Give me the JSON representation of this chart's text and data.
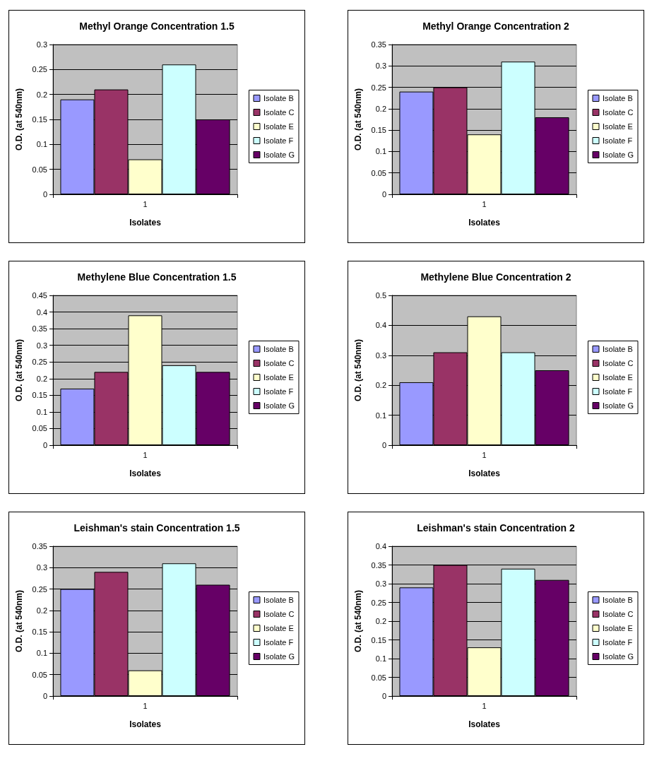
{
  "chart_data": [
    {
      "type": "bar",
      "title": "Methyl Orange Concentration 1.5",
      "xlabel": "Isolates",
      "ylabel": "O.D. (at 540nm)",
      "categories": [
        "1"
      ],
      "ylim": [
        0,
        0.3
      ],
      "yticks": [
        0,
        0.05,
        0.1,
        0.15,
        0.2,
        0.25,
        0.3
      ],
      "grid": "y",
      "legend": "right",
      "series": [
        {
          "name": "Isolate B",
          "color": "#9999ff",
          "values": [
            0.19
          ]
        },
        {
          "name": "Isolate C",
          "color": "#993366",
          "values": [
            0.21
          ]
        },
        {
          "name": "Isolate E",
          "color": "#ffffcc",
          "values": [
            0.07
          ]
        },
        {
          "name": "Isolate F",
          "color": "#ccffff",
          "values": [
            0.26
          ]
        },
        {
          "name": "Isolate G",
          "color": "#660066",
          "values": [
            0.15
          ]
        }
      ]
    },
    {
      "type": "bar",
      "title": "Methyl Orange Concentration 2",
      "xlabel": "Isolates",
      "ylabel": "O.D. (at 540nm)",
      "categories": [
        "1"
      ],
      "ylim": [
        0,
        0.35
      ],
      "yticks": [
        0,
        0.05,
        0.1,
        0.15,
        0.2,
        0.25,
        0.3,
        0.35
      ],
      "grid": "y",
      "legend": "right",
      "series": [
        {
          "name": "Isolate B",
          "color": "#9999ff",
          "values": [
            0.24
          ]
        },
        {
          "name": "Isolate C",
          "color": "#993366",
          "values": [
            0.25
          ]
        },
        {
          "name": "Isolate E",
          "color": "#ffffcc",
          "values": [
            0.14
          ]
        },
        {
          "name": "Isolate F",
          "color": "#ccffff",
          "values": [
            0.31
          ]
        },
        {
          "name": "Isolate G",
          "color": "#660066",
          "values": [
            0.18
          ]
        }
      ]
    },
    {
      "type": "bar",
      "title": "Methylene Blue Concentration 1.5",
      "xlabel": "Isolates",
      "ylabel": "O.D. (at 540nm)",
      "categories": [
        "1"
      ],
      "ylim": [
        0,
        0.45
      ],
      "yticks": [
        0,
        0.05,
        0.1,
        0.15,
        0.2,
        0.25,
        0.3,
        0.35,
        0.4,
        0.45
      ],
      "grid": "y",
      "legend": "right",
      "series": [
        {
          "name": "Isolate B",
          "color": "#9999ff",
          "values": [
            0.17
          ]
        },
        {
          "name": "Isolate C",
          "color": "#993366",
          "values": [
            0.22
          ]
        },
        {
          "name": "Isolate E",
          "color": "#ffffcc",
          "values": [
            0.39
          ]
        },
        {
          "name": "Isolate F",
          "color": "#ccffff",
          "values": [
            0.24
          ]
        },
        {
          "name": "Isolate G",
          "color": "#660066",
          "values": [
            0.22
          ]
        }
      ]
    },
    {
      "type": "bar",
      "title": "Methylene Blue Concentration 2",
      "xlabel": "Isolates",
      "ylabel": "O.D. (at 540nm)",
      "categories": [
        "1"
      ],
      "ylim": [
        0,
        0.5
      ],
      "yticks": [
        0,
        0.1,
        0.2,
        0.3,
        0.4,
        0.5
      ],
      "grid": "y",
      "legend": "right",
      "series": [
        {
          "name": "Isolate B",
          "color": "#9999ff",
          "values": [
            0.21
          ]
        },
        {
          "name": "Isolate C",
          "color": "#993366",
          "values": [
            0.31
          ]
        },
        {
          "name": "Isolate E",
          "color": "#ffffcc",
          "values": [
            0.43
          ]
        },
        {
          "name": "Isolate F",
          "color": "#ccffff",
          "values": [
            0.31
          ]
        },
        {
          "name": "Isolate G",
          "color": "#660066",
          "values": [
            0.25
          ]
        }
      ]
    },
    {
      "type": "bar",
      "title": "Leishman's stain Concentration 1.5",
      "xlabel": "Isolates",
      "ylabel": "O.D. (at 540nm)",
      "categories": [
        "1"
      ],
      "ylim": [
        0,
        0.35
      ],
      "yticks": [
        0,
        0.05,
        0.1,
        0.15,
        0.2,
        0.25,
        0.3,
        0.35
      ],
      "grid": "y",
      "legend": "right",
      "series": [
        {
          "name": "Isolate B",
          "color": "#9999ff",
          "values": [
            0.25
          ]
        },
        {
          "name": "Isolate C",
          "color": "#993366",
          "values": [
            0.29
          ]
        },
        {
          "name": "Isolate E",
          "color": "#ffffcc",
          "values": [
            0.06
          ]
        },
        {
          "name": "Isolate F",
          "color": "#ccffff",
          "values": [
            0.31
          ]
        },
        {
          "name": "Isolate G",
          "color": "#660066",
          "values": [
            0.26
          ]
        }
      ]
    },
    {
      "type": "bar",
      "title": "Leishman's stain Concentration 2",
      "xlabel": "Isolates",
      "ylabel": "O.D. (at 540nm)",
      "categories": [
        "1"
      ],
      "ylim": [
        0,
        0.4
      ],
      "yticks": [
        0,
        0.05,
        0.1,
        0.15,
        0.2,
        0.25,
        0.3,
        0.35,
        0.4
      ],
      "grid": "y",
      "legend": "right",
      "series": [
        {
          "name": "Isolate B",
          "color": "#9999ff",
          "values": [
            0.29
          ]
        },
        {
          "name": "Isolate C",
          "color": "#993366",
          "values": [
            0.35
          ]
        },
        {
          "name": "Isolate E",
          "color": "#ffffcc",
          "values": [
            0.13
          ]
        },
        {
          "name": "Isolate F",
          "color": "#ccffff",
          "values": [
            0.34
          ]
        },
        {
          "name": "Isolate G",
          "color": "#660066",
          "values": [
            0.31
          ]
        }
      ]
    }
  ]
}
